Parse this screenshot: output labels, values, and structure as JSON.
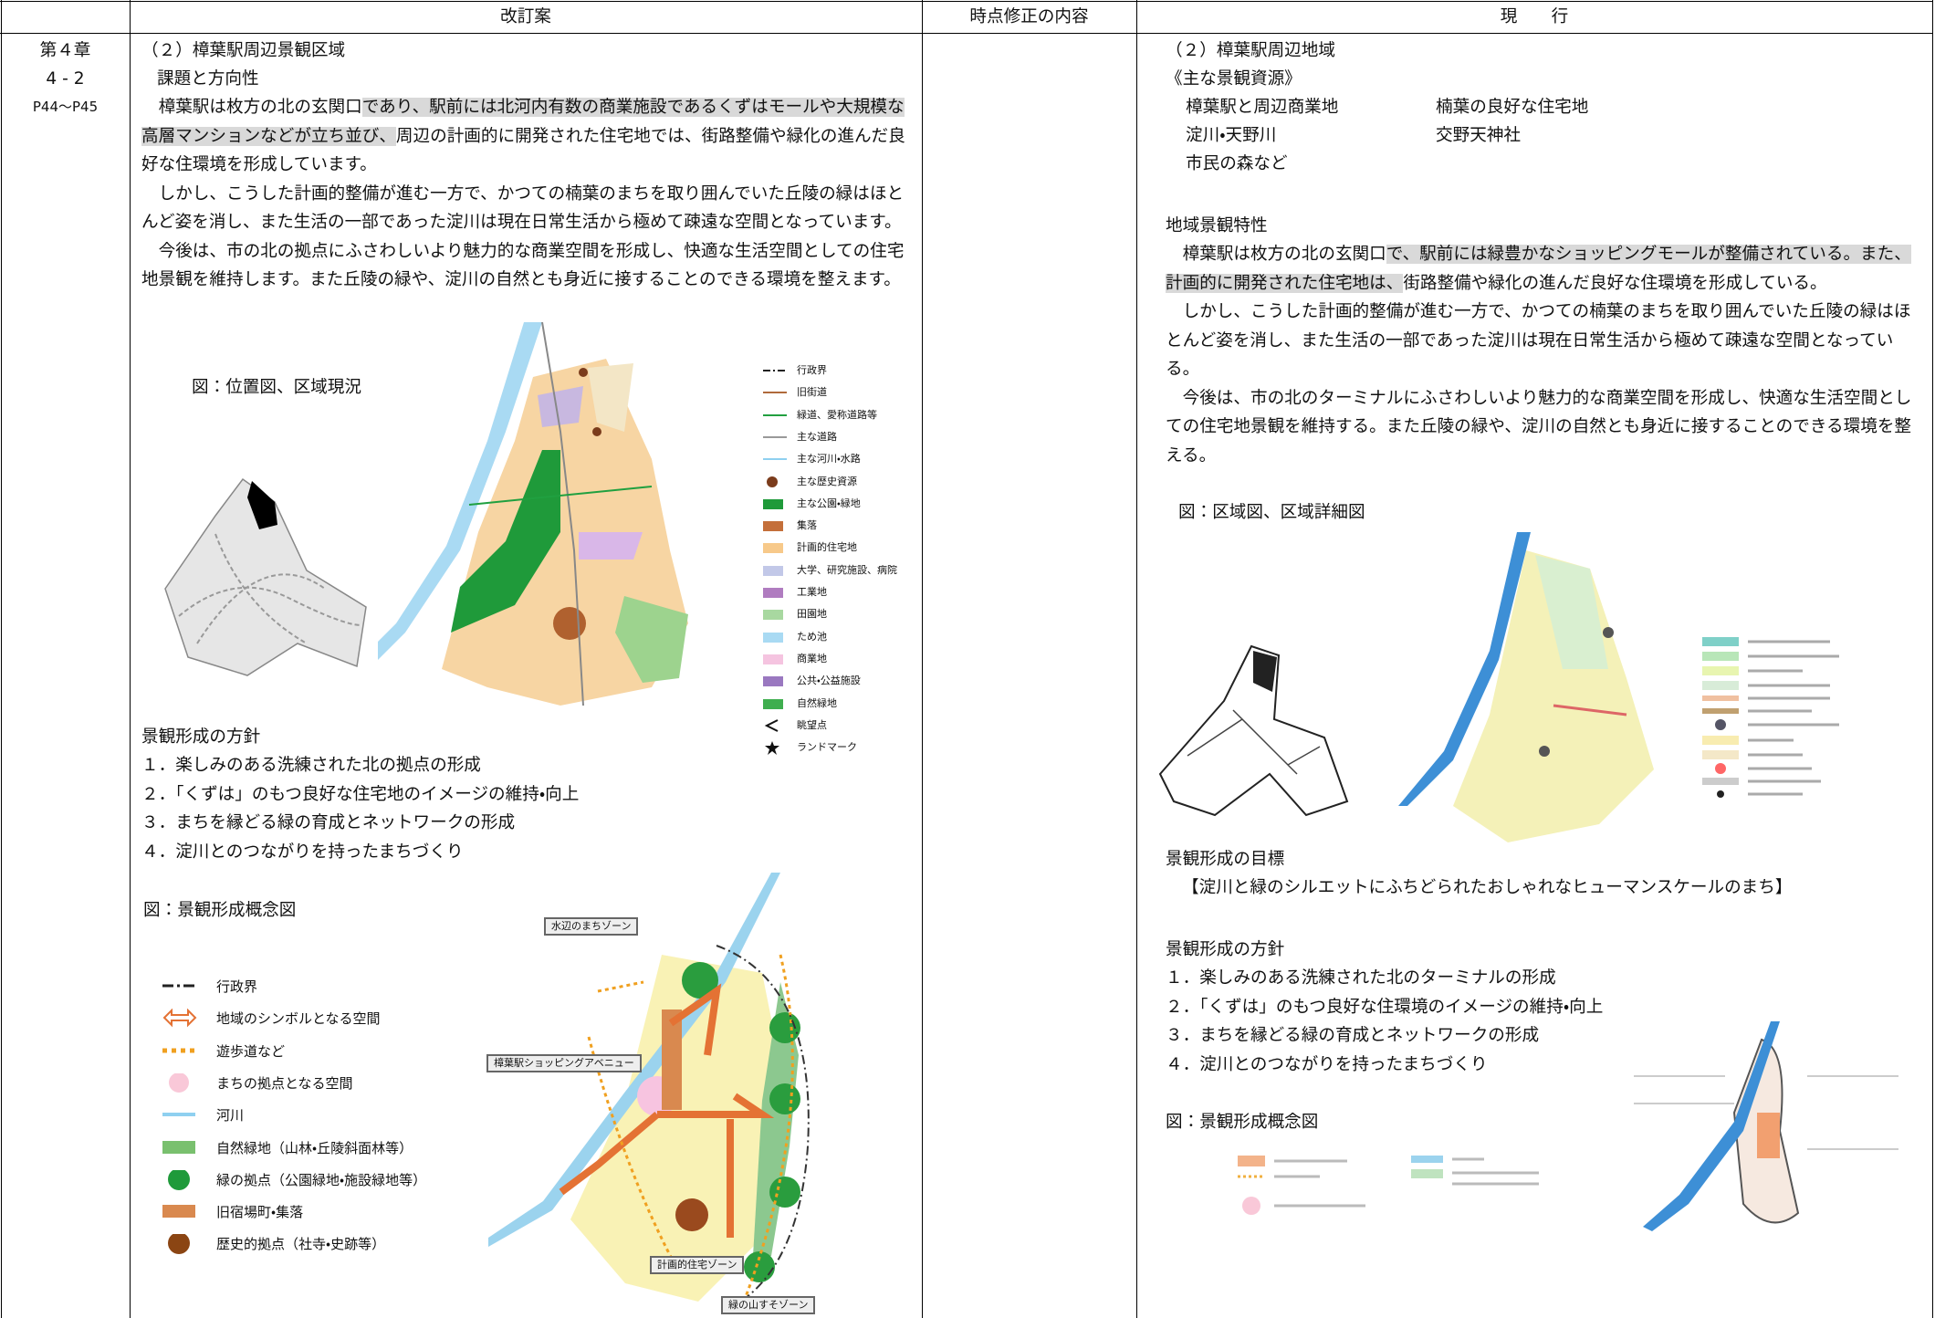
{
  "header": {
    "revised": "改訂案",
    "correction": "時点修正の内容",
    "current": "現　　行"
  },
  "chapter": {
    "chapter": "第４章",
    "section": "4 - 2",
    "pages": "P44～P45"
  },
  "revised": {
    "title": "（２）樟葉駅周辺景観区域",
    "subtitle": "課題と方向性",
    "paragraphs": [
      [
        {
          "text": "樟葉駅は枚方の北の玄関口",
          "highlight": false
        },
        {
          "text": "であり、駅前には北河内有数の商業施設であるくずはモールや大規模な高層マンションなどが立ち並び、",
          "highlight": true
        },
        {
          "text": "周辺の計画的に開発された住宅地では、街路整備や緑化の進んだ良好な住環境を形成しています。",
          "highlight": false
        }
      ],
      [
        {
          "text": "しかし、こうした計画的整備が進む一方で、かつての楠葉のまちを取り囲んでいた丘陵の緑はほとんど姿を消し、また生活の一部であった淀川は現在日常生活から極めて疎遠な空間となっています。",
          "highlight": false
        }
      ],
      [
        {
          "text": "今後は、市の北の拠点にふさわしいより魅力的な商業空間を形成し、快適な生活空間としての住宅地景観を維持します。また丘陵の緑や、淀川の自然とも身近に接することのできる環境を整えます。",
          "highlight": false
        }
      ]
    ],
    "figure1_caption": "図：位置図、区域現況",
    "figure1_legend": [
      "行政界",
      "旧街道",
      "緑道、愛称道路等",
      "主な道路",
      "主な河川・水路",
      "主な歴史資源",
      "主な公園・緑地",
      "集落",
      "計画的住宅地",
      "大学、研究施設、病院",
      "工業地",
      "田園地",
      "ため池",
      "商業地",
      "公共・公益施設",
      "自然緑地",
      "眺望点",
      "ランドマーク"
    ],
    "policy_heading": "景観形成の方針",
    "policies": [
      "１．楽しみのある洗練された北の拠点の形成",
      "２．「くずは」のもつ良好な住宅地のイメージの維持・向上",
      "３．まちを縁どる緑の育成とネットワークの形成",
      "４．淀川とのつながりを持ったまちづくり"
    ],
    "figure2_caption": "図：景観形成概念図",
    "figure2_legend": [
      "行政界",
      "地域のシンボルとなる空間",
      "遊歩道など",
      "まちの拠点となる空間",
      "河川",
      "自然緑地（山林・丘陵斜面林等）",
      "緑の拠点（公園緑地・施設緑地等）",
      "旧宿場町・集落",
      "歴史的拠点（社寺・史跡等）"
    ],
    "concept_map_labels": [
      "水辺のまちゾーン",
      "樟葉駅ショッピングアベニュー",
      "計画的住宅ゾーン",
      "緑の山すそゾーン"
    ]
  },
  "current": {
    "title": "（２）樟葉駅周辺地域",
    "resources_heading": "《主な景観資源》",
    "resources": [
      "樟葉駅と周辺商業地",
      "楠葉の良好な住宅地",
      "淀川・天野川",
      "交野天神社",
      "市民の森など"
    ],
    "character_heading": "地域景観特性",
    "paragraphs": [
      [
        {
          "text": "樟葉駅は枚方の北の玄関口",
          "highlight": false
        },
        {
          "text": "で、駅前には緑豊かなショッピングモールが整備されている。また、計画的に開発された住宅地は、",
          "highlight": true
        },
        {
          "text": "街路整備や緑化の進んだ良好な住環境を形成している。",
          "highlight": false
        }
      ],
      [
        {
          "text": "しかし、こうした計画的整備が進む一方で、かつての楠葉のまちを取り囲んでいた丘陵の緑はほとんど姿を消し、また生活の一部であった淀川は現在日常生活から極めて疎遠な空間となっている。",
          "highlight": false
        }
      ],
      [
        {
          "text": "今後は、市の北のターミナルにふさわしいより魅力的な商業空間を形成し、快適な生活空間としての住宅地景観を維持する。また丘陵の緑や、淀川の自然とも身近に接することのできる環境を整える。",
          "highlight": false
        }
      ]
    ],
    "figure1_caption": "図：区域図、区域詳細図",
    "goal_heading": "景観形成の目標",
    "goal": "【淀川と緑のシルエットにふちどられたおしゃれなヒューマンスケールのまち】",
    "policy_heading": "景観形成の方針",
    "policies": [
      "１．楽しみのある洗練された北のターミナルの形成",
      "２．「くずは」のもつ良好な住環境のイメージの維持・向上",
      "３．まちを縁どる緑の育成とネットワークの形成",
      "４．淀川とのつながりを持ったまちづくり"
    ],
    "figure2_caption": "図：景観形成概念図"
  }
}
